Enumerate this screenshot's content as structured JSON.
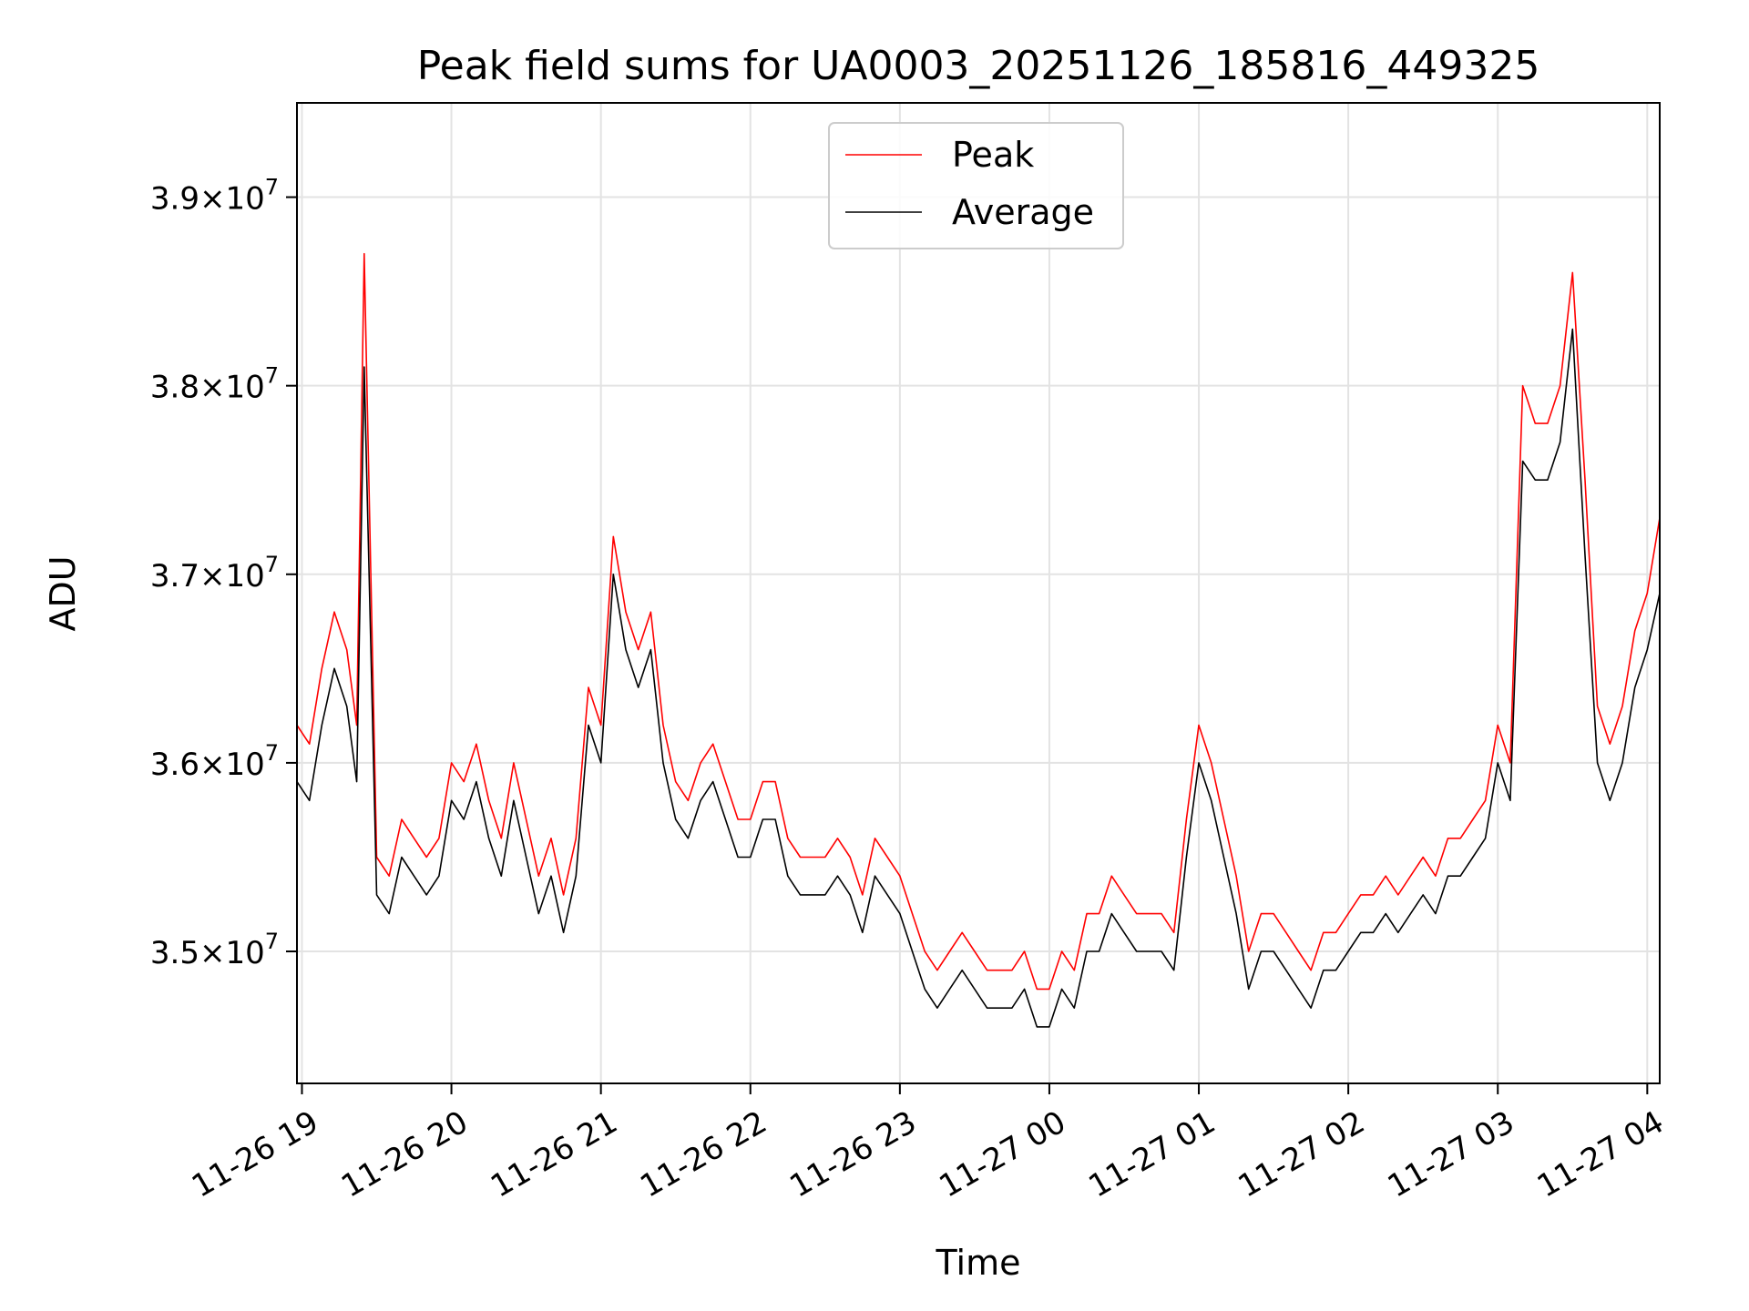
{
  "chart_data": {
    "type": "line",
    "title": "Peak field sums for UA0003_20251126_185816_449325",
    "xlabel": "Time",
    "ylabel": "ADU",
    "x_range": [
      "2025-11-26 18:58",
      "2025-11-27 04:05"
    ],
    "ylim": [
      34300000,
      39500000
    ],
    "x_ticks": [
      {
        "at": "2025-11-26 19:00",
        "label": "11-26 19"
      },
      {
        "at": "2025-11-26 20:00",
        "label": "11-26 20"
      },
      {
        "at": "2025-11-26 21:00",
        "label": "11-26 21"
      },
      {
        "at": "2025-11-26 22:00",
        "label": "11-26 22"
      },
      {
        "at": "2025-11-26 23:00",
        "label": "11-26 23"
      },
      {
        "at": "2025-11-27 00:00",
        "label": "11-27 00"
      },
      {
        "at": "2025-11-27 01:00",
        "label": "11-27 01"
      },
      {
        "at": "2025-11-27 02:00",
        "label": "11-27 02"
      },
      {
        "at": "2025-11-27 03:00",
        "label": "11-27 03"
      },
      {
        "at": "2025-11-27 04:00",
        "label": "11-27 04"
      }
    ],
    "y_ticks": [
      {
        "value": 35000000,
        "mantissa": "3.5",
        "exponent": "7"
      },
      {
        "value": 36000000,
        "mantissa": "3.6",
        "exponent": "7"
      },
      {
        "value": 37000000,
        "mantissa": "3.7",
        "exponent": "7"
      },
      {
        "value": 38000000,
        "mantissa": "3.8",
        "exponent": "7"
      },
      {
        "value": 39000000,
        "mantissa": "3.9",
        "exponent": "7"
      }
    ],
    "grid": true,
    "legend_position": "top-center",
    "series": [
      {
        "name": "Peak",
        "color": "#ff0000",
        "x": [
          "2025-11-26 18:58",
          "2025-11-26 19:03",
          "2025-11-26 19:08",
          "2025-11-26 19:13",
          "2025-11-26 19:18",
          "2025-11-26 19:22",
          "2025-11-26 19:25",
          "2025-11-26 19:30",
          "2025-11-26 19:35",
          "2025-11-26 19:40",
          "2025-11-26 19:45",
          "2025-11-26 19:50",
          "2025-11-26 19:55",
          "2025-11-26 20:00",
          "2025-11-26 20:05",
          "2025-11-26 20:10",
          "2025-11-26 20:15",
          "2025-11-26 20:20",
          "2025-11-26 20:25",
          "2025-11-26 20:30",
          "2025-11-26 20:35",
          "2025-11-26 20:40",
          "2025-11-26 20:45",
          "2025-11-26 20:50",
          "2025-11-26 20:55",
          "2025-11-26 21:00",
          "2025-11-26 21:05",
          "2025-11-26 21:10",
          "2025-11-26 21:15",
          "2025-11-26 21:20",
          "2025-11-26 21:25",
          "2025-11-26 21:30",
          "2025-11-26 21:35",
          "2025-11-26 21:40",
          "2025-11-26 21:45",
          "2025-11-26 21:50",
          "2025-11-26 21:55",
          "2025-11-26 22:00",
          "2025-11-26 22:05",
          "2025-11-26 22:10",
          "2025-11-26 22:15",
          "2025-11-26 22:20",
          "2025-11-26 22:25",
          "2025-11-26 22:30",
          "2025-11-26 22:35",
          "2025-11-26 22:40",
          "2025-11-26 22:45",
          "2025-11-26 22:50",
          "2025-11-26 22:55",
          "2025-11-26 23:00",
          "2025-11-26 23:05",
          "2025-11-26 23:10",
          "2025-11-26 23:15",
          "2025-11-26 23:20",
          "2025-11-26 23:25",
          "2025-11-26 23:30",
          "2025-11-26 23:35",
          "2025-11-26 23:40",
          "2025-11-26 23:45",
          "2025-11-26 23:50",
          "2025-11-26 23:55",
          "2025-11-27 00:00",
          "2025-11-27 00:05",
          "2025-11-27 00:10",
          "2025-11-27 00:15",
          "2025-11-27 00:20",
          "2025-11-27 00:25",
          "2025-11-27 00:30",
          "2025-11-27 00:35",
          "2025-11-27 00:40",
          "2025-11-27 00:45",
          "2025-11-27 00:50",
          "2025-11-27 00:55",
          "2025-11-27 01:00",
          "2025-11-27 01:05",
          "2025-11-27 01:10",
          "2025-11-27 01:15",
          "2025-11-27 01:20",
          "2025-11-27 01:25",
          "2025-11-27 01:30",
          "2025-11-27 01:35",
          "2025-11-27 01:40",
          "2025-11-27 01:45",
          "2025-11-27 01:50",
          "2025-11-27 01:55",
          "2025-11-27 02:00",
          "2025-11-27 02:05",
          "2025-11-27 02:10",
          "2025-11-27 02:15",
          "2025-11-27 02:20",
          "2025-11-27 02:25",
          "2025-11-27 02:30",
          "2025-11-27 02:35",
          "2025-11-27 02:40",
          "2025-11-27 02:45",
          "2025-11-27 02:50",
          "2025-11-27 02:55",
          "2025-11-27 03:00",
          "2025-11-27 03:05",
          "2025-11-27 03:10",
          "2025-11-27 03:15",
          "2025-11-27 03:20",
          "2025-11-27 03:25",
          "2025-11-27 03:30",
          "2025-11-27 03:35",
          "2025-11-27 03:40",
          "2025-11-27 03:45",
          "2025-11-27 03:50",
          "2025-11-27 03:55",
          "2025-11-27 04:00",
          "2025-11-27 04:05"
        ],
        "values": [
          36200000,
          36100000,
          36500000,
          36800000,
          36600000,
          36200000,
          38700000,
          35500000,
          35400000,
          35700000,
          35600000,
          35500000,
          35600000,
          36000000,
          35900000,
          36100000,
          35800000,
          35600000,
          36000000,
          35700000,
          35400000,
          35600000,
          35300000,
          35600000,
          36400000,
          36200000,
          37200000,
          36800000,
          36600000,
          36800000,
          36200000,
          35900000,
          35800000,
          36000000,
          36100000,
          35900000,
          35700000,
          35700000,
          35900000,
          35900000,
          35600000,
          35500000,
          35500000,
          35500000,
          35600000,
          35500000,
          35300000,
          35600000,
          35500000,
          35400000,
          35200000,
          35000000,
          34900000,
          35000000,
          35100000,
          35000000,
          34900000,
          34900000,
          34900000,
          35000000,
          34800000,
          34800000,
          35000000,
          34900000,
          35200000,
          35200000,
          35400000,
          35300000,
          35200000,
          35200000,
          35200000,
          35100000,
          35700000,
          36200000,
          36000000,
          35700000,
          35400000,
          35000000,
          35200000,
          35200000,
          35100000,
          35000000,
          34900000,
          35100000,
          35100000,
          35200000,
          35300000,
          35300000,
          35400000,
          35300000,
          35400000,
          35500000,
          35400000,
          35600000,
          35600000,
          35700000,
          35800000,
          36200000,
          36000000,
          38000000,
          37800000,
          37800000,
          38000000,
          38600000,
          37500000,
          36300000,
          36100000,
          36300000,
          36700000,
          36900000,
          37300000
        ]
      },
      {
        "name": "Average",
        "color": "#000000",
        "x": [
          "2025-11-26 18:58",
          "2025-11-26 19:03",
          "2025-11-26 19:08",
          "2025-11-26 19:13",
          "2025-11-26 19:18",
          "2025-11-26 19:22",
          "2025-11-26 19:25",
          "2025-11-26 19:30",
          "2025-11-26 19:35",
          "2025-11-26 19:40",
          "2025-11-26 19:45",
          "2025-11-26 19:50",
          "2025-11-26 19:55",
          "2025-11-26 20:00",
          "2025-11-26 20:05",
          "2025-11-26 20:10",
          "2025-11-26 20:15",
          "2025-11-26 20:20",
          "2025-11-26 20:25",
          "2025-11-26 20:30",
          "2025-11-26 20:35",
          "2025-11-26 20:40",
          "2025-11-26 20:45",
          "2025-11-26 20:50",
          "2025-11-26 20:55",
          "2025-11-26 21:00",
          "2025-11-26 21:05",
          "2025-11-26 21:10",
          "2025-11-26 21:15",
          "2025-11-26 21:20",
          "2025-11-26 21:25",
          "2025-11-26 21:30",
          "2025-11-26 21:35",
          "2025-11-26 21:40",
          "2025-11-26 21:45",
          "2025-11-26 21:50",
          "2025-11-26 21:55",
          "2025-11-26 22:00",
          "2025-11-26 22:05",
          "2025-11-26 22:10",
          "2025-11-26 22:15",
          "2025-11-26 22:20",
          "2025-11-26 22:25",
          "2025-11-26 22:30",
          "2025-11-26 22:35",
          "2025-11-26 22:40",
          "2025-11-26 22:45",
          "2025-11-26 22:50",
          "2025-11-26 22:55",
          "2025-11-26 23:00",
          "2025-11-26 23:05",
          "2025-11-26 23:10",
          "2025-11-26 23:15",
          "2025-11-26 23:20",
          "2025-11-26 23:25",
          "2025-11-26 23:30",
          "2025-11-26 23:35",
          "2025-11-26 23:40",
          "2025-11-26 23:45",
          "2025-11-26 23:50",
          "2025-11-26 23:55",
          "2025-11-27 00:00",
          "2025-11-27 00:05",
          "2025-11-27 00:10",
          "2025-11-27 00:15",
          "2025-11-27 00:20",
          "2025-11-27 00:25",
          "2025-11-27 00:30",
          "2025-11-27 00:35",
          "2025-11-27 00:40",
          "2025-11-27 00:45",
          "2025-11-27 00:50",
          "2025-11-27 00:55",
          "2025-11-27 01:00",
          "2025-11-27 01:05",
          "2025-11-27 01:10",
          "2025-11-27 01:15",
          "2025-11-27 01:20",
          "2025-11-27 01:25",
          "2025-11-27 01:30",
          "2025-11-27 01:35",
          "2025-11-27 01:40",
          "2025-11-27 01:45",
          "2025-11-27 01:50",
          "2025-11-27 01:55",
          "2025-11-27 02:00",
          "2025-11-27 02:05",
          "2025-11-27 02:10",
          "2025-11-27 02:15",
          "2025-11-27 02:20",
          "2025-11-27 02:25",
          "2025-11-27 02:30",
          "2025-11-27 02:35",
          "2025-11-27 02:40",
          "2025-11-27 02:45",
          "2025-11-27 02:50",
          "2025-11-27 02:55",
          "2025-11-27 03:00",
          "2025-11-27 03:05",
          "2025-11-27 03:10",
          "2025-11-27 03:15",
          "2025-11-27 03:20",
          "2025-11-27 03:25",
          "2025-11-27 03:30",
          "2025-11-27 03:35",
          "2025-11-27 03:40",
          "2025-11-27 03:45",
          "2025-11-27 03:50",
          "2025-11-27 03:55",
          "2025-11-27 04:00",
          "2025-11-27 04:05"
        ],
        "values": [
          35900000,
          35800000,
          36200000,
          36500000,
          36300000,
          35900000,
          38100000,
          35300000,
          35200000,
          35500000,
          35400000,
          35300000,
          35400000,
          35800000,
          35700000,
          35900000,
          35600000,
          35400000,
          35800000,
          35500000,
          35200000,
          35400000,
          35100000,
          35400000,
          36200000,
          36000000,
          37000000,
          36600000,
          36400000,
          36600000,
          36000000,
          35700000,
          35600000,
          35800000,
          35900000,
          35700000,
          35500000,
          35500000,
          35700000,
          35700000,
          35400000,
          35300000,
          35300000,
          35300000,
          35400000,
          35300000,
          35100000,
          35400000,
          35300000,
          35200000,
          35000000,
          34800000,
          34700000,
          34800000,
          34900000,
          34800000,
          34700000,
          34700000,
          34700000,
          34800000,
          34600000,
          34600000,
          34800000,
          34700000,
          35000000,
          35000000,
          35200000,
          35100000,
          35000000,
          35000000,
          35000000,
          34900000,
          35500000,
          36000000,
          35800000,
          35500000,
          35200000,
          34800000,
          35000000,
          35000000,
          34900000,
          34800000,
          34700000,
          34900000,
          34900000,
          35000000,
          35100000,
          35100000,
          35200000,
          35100000,
          35200000,
          35300000,
          35200000,
          35400000,
          35400000,
          35500000,
          35600000,
          36000000,
          35800000,
          37600000,
          37500000,
          37500000,
          37700000,
          38300000,
          37100000,
          36000000,
          35800000,
          36000000,
          36400000,
          36600000,
          36900000
        ]
      }
    ]
  }
}
